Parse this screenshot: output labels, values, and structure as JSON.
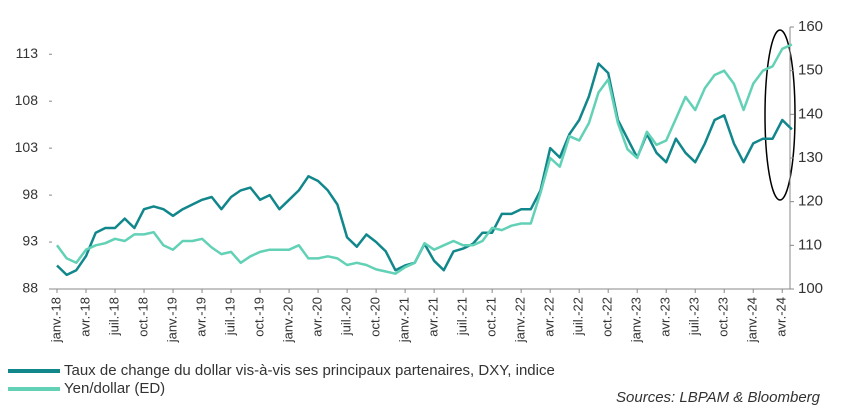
{
  "chart_data": {
    "type": "line",
    "categories": [
      "janv.-18",
      null,
      null,
      "avr.-18",
      null,
      null,
      "juil.-18",
      null,
      null,
      "oct.-18",
      null,
      null,
      "janv.-19",
      null,
      null,
      "avr.-19",
      null,
      null,
      "juil.-19",
      null,
      null,
      "oct.-19",
      null,
      null,
      "janv.-20",
      null,
      null,
      "avr.-20",
      null,
      null,
      "juil.-20",
      null,
      null,
      "oct.-20",
      null,
      null,
      "janv.-21",
      null,
      null,
      "avr.-21",
      null,
      null,
      "juil.-21",
      null,
      null,
      "oct.-21",
      null,
      null,
      "janv.-22",
      null,
      null,
      "avr.-22",
      null,
      null,
      "juil.-22",
      null,
      null,
      "oct.-22",
      null,
      null,
      "janv.-23",
      null,
      null,
      "avr.-23",
      null,
      null,
      "juil.-23",
      null,
      null,
      "oct.-23",
      null,
      null,
      "janv.-24",
      null,
      null,
      "avr.-24",
      null
    ],
    "series": [
      {
        "name": "Taux de change du dollar vis-à-vis ses principaux partenaires, DXY, indice",
        "color": "#11878c",
        "values": [
          90.5,
          89.5,
          90,
          91.5,
          94,
          94.5,
          94.5,
          95.5,
          94.5,
          96.5,
          96.8,
          96.5,
          95.8,
          96.5,
          97,
          97.5,
          97.8,
          96.5,
          97.8,
          98.5,
          98.8,
          97.5,
          98,
          96.5,
          97.5,
          98.5,
          100,
          99.5,
          98.5,
          97,
          93.5,
          92.5,
          93.8,
          93,
          92,
          90,
          90.5,
          90.8,
          92.8,
          91,
          90,
          92,
          92.3,
          92.8,
          94,
          94,
          96,
          96,
          96.5,
          96.5,
          98.5,
          103,
          102,
          104.5,
          106,
          108.5,
          112,
          111,
          106,
          104,
          102,
          104.5,
          102.5,
          101.5,
          104,
          102.5,
          101.5,
          103.5,
          106,
          106.5,
          103.5,
          101.5,
          103.5,
          104,
          104,
          106,
          105
        ]
      },
      {
        "name": "Yen/dollar (ED)",
        "color": "#62d1b6",
        "axis": "y2",
        "values": [
          110,
          107,
          106,
          109,
          110,
          110.5,
          111.5,
          111,
          112.5,
          112.5,
          113,
          110,
          109,
          111,
          111,
          111.5,
          109.5,
          108,
          108.5,
          106,
          107.5,
          108.5,
          109,
          109,
          109,
          110,
          107,
          107,
          107.5,
          107,
          105.5,
          106,
          105.5,
          104.5,
          104,
          103.5,
          105,
          106,
          110.5,
          109,
          110,
          111,
          110,
          110,
          111,
          114,
          113.5,
          114.5,
          115,
          115,
          122,
          130,
          128,
          135,
          134,
          138,
          145,
          148,
          138,
          132,
          130,
          136,
          133,
          134,
          139,
          144,
          141,
          146,
          149,
          150,
          147,
          141,
          147,
          150,
          151,
          155,
          156
        ]
      }
    ],
    "ylim": [
      88,
      115.9
    ],
    "yticks": [
      88,
      93,
      98,
      103,
      108,
      113
    ],
    "y2lim": [
      100,
      160
    ],
    "y2ticks": [
      100,
      110,
      120,
      130,
      140,
      150,
      160
    ],
    "source": "Sources: LBPAM & Bloomberg"
  }
}
